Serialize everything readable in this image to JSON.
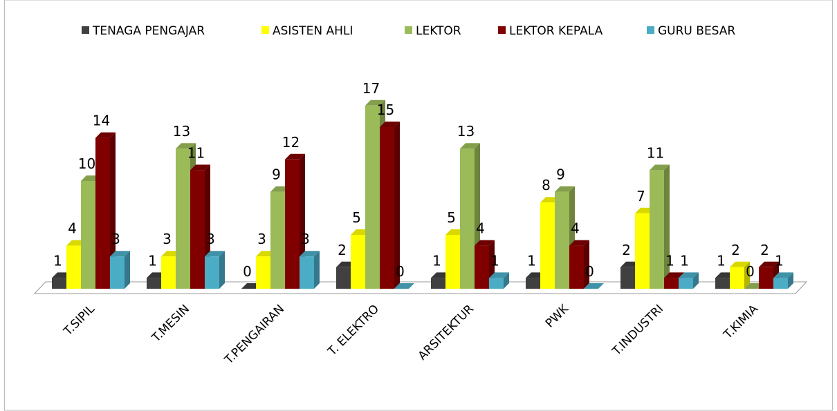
{
  "chart_data": {
    "type": "bar3d",
    "categories": [
      "T.SIPIL",
      "T.MESIN",
      "T.PENGAIRAN",
      "T. ELEKTRO",
      "ARSITEKTUR",
      "PWK",
      "T.INDUSTRI",
      "T.KIMIA"
    ],
    "series": [
      {
        "name": "TENAGA PENGAJAR",
        "color": "#404040",
        "values": [
          1,
          1,
          0,
          2,
          1,
          1,
          2,
          1
        ]
      },
      {
        "name": "ASISTEN AHLI",
        "color": "#ffff00",
        "values": [
          4,
          3,
          3,
          5,
          5,
          8,
          7,
          2
        ]
      },
      {
        "name": "LEKTOR",
        "color": "#9bbb59",
        "values": [
          10,
          13,
          9,
          17,
          13,
          9,
          11,
          0
        ]
      },
      {
        "name": "LEKTOR KEPALA",
        "color": "#800000",
        "values": [
          14,
          11,
          12,
          15,
          4,
          4,
          1,
          2
        ]
      },
      {
        "name": "GURU BESAR",
        "color": "#4bacc6",
        "values": [
          3,
          3,
          3,
          0,
          1,
          0,
          1,
          1
        ]
      }
    ],
    "legend": "top"
  }
}
